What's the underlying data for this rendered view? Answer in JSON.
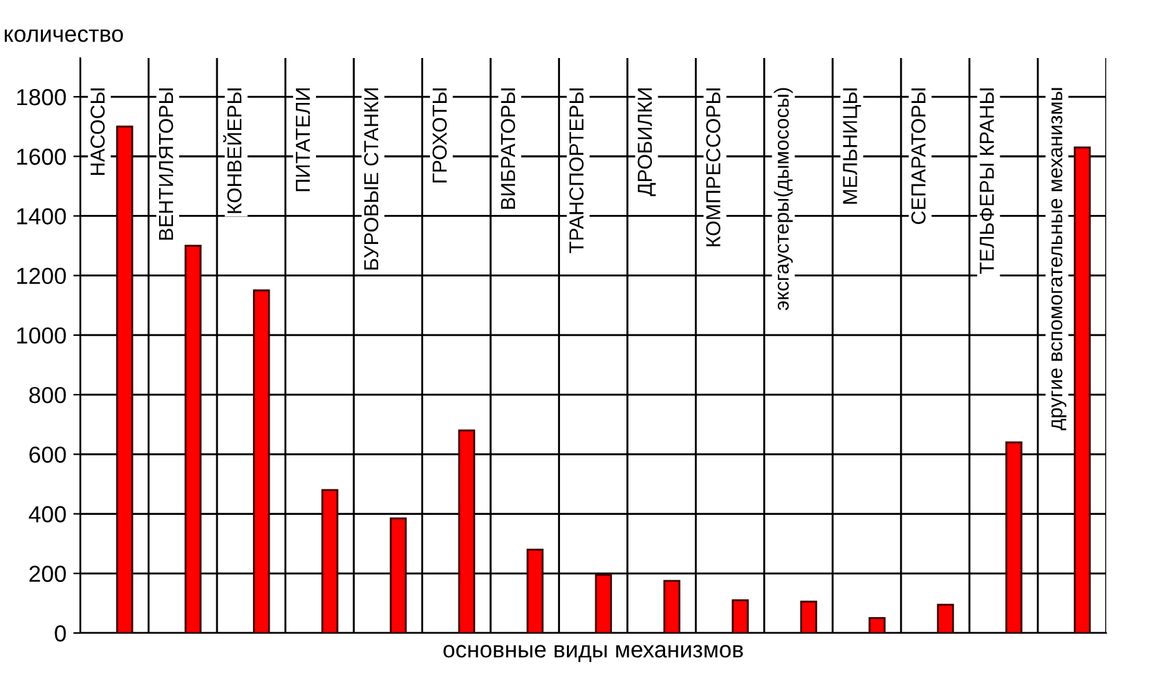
{
  "chart_data": {
    "type": "bar",
    "ylabel": "количество",
    "xlabel": "основные виды механизмов",
    "categories": [
      "НАСОСЫ",
      "ВЕНТИЛЯТОРЫ",
      "КОНВЕЙЕРЫ",
      "ПИТАТЕЛИ",
      "БУРОВЫЕ СТАНКИ",
      "ГРОХОТЫ",
      "ВИБРАТОРЫ",
      "ТРАНСПОРТЕРЫ",
      "ДРОБИЛКИ",
      "КОМПРЕССОРЫ",
      "эксгаустеры(дымососы)",
      "МЕЛЬНИЦЫ",
      "СЕПАРАТОРЫ",
      "ТЕЛЬФЕРЫ КРАНЫ",
      "другие вспомогательные механизмы"
    ],
    "values": [
      1700,
      1300,
      1150,
      480,
      385,
      680,
      280,
      195,
      175,
      110,
      105,
      50,
      95,
      640,
      1630
    ],
    "color": "#ff0000",
    "ylim": [
      0,
      1930
    ],
    "yticks": [
      0,
      200,
      400,
      600,
      800,
      1000,
      1200,
      1400,
      1600,
      1800
    ],
    "grid": true,
    "tick_labels": "y"
  }
}
